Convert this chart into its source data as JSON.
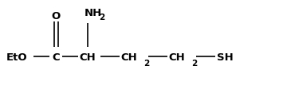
{
  "background_color": "#ffffff",
  "font_family": "Courier New",
  "font_weight": "bold",
  "font_size": 9.5,
  "subscript_font_size": 7.5,
  "line_color": "#000000",
  "line_width": 1.2,
  "figsize": [
    3.55,
    1.13
  ],
  "dpi": 100,
  "xlim": [
    0,
    355
  ],
  "ylim": [
    0,
    113
  ],
  "main_y": 72,
  "o_y": 22,
  "nh2_y": 18,
  "subscript_y_above": 26,
  "subscript_y_below": 80,
  "items": {
    "EtO_x": 8,
    "dash1_x1": 42,
    "dash1_x2": 62,
    "C_x": 70,
    "dash2_x1": 78,
    "dash2_x2": 98,
    "CH_x": 110,
    "dash3_x1": 126,
    "dash3_x2": 150,
    "CH2a_x": 162,
    "sub2a_x": 180,
    "dash4_x1": 186,
    "dash4_x2": 210,
    "CH2b_x": 222,
    "sub2b_x": 240,
    "dash5_x1": 246,
    "dash5_x2": 270,
    "SH_x": 282
  }
}
